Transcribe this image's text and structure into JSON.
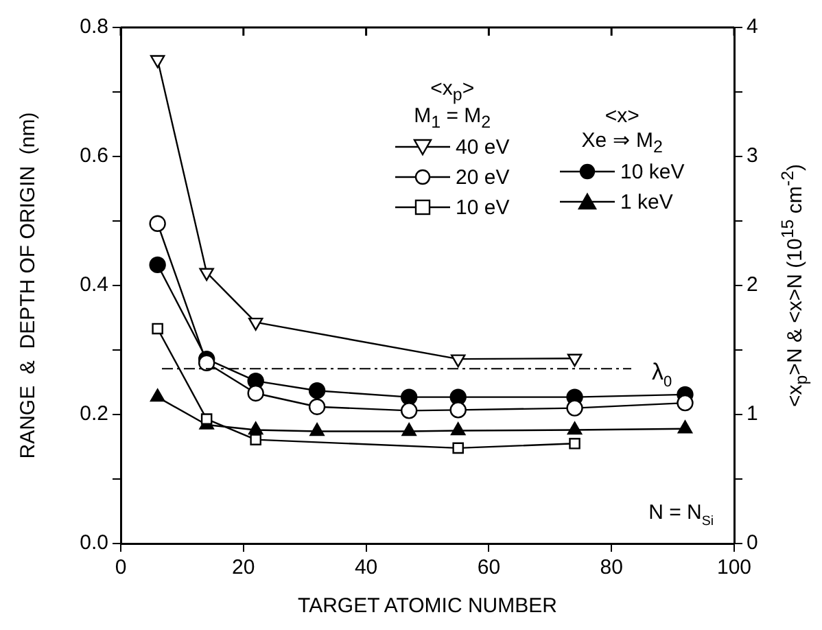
{
  "chart_data": {
    "type": "line",
    "xlabel": "TARGET ATOMIC NUMBER",
    "ylabel": "RANGE  &  DEPTH OF ORIGIN  (nm)",
    "y2label": "<x$_{p}$>N  &  <x>N  (10$^{15}$ cm$^{-2}$)",
    "xlim": [
      0,
      100
    ],
    "xticks": [
      0,
      20,
      40,
      60,
      80,
      100
    ],
    "ylim": [
      0,
      0.8
    ],
    "yticks": [
      {
        "value": 0,
        "label": "0.0"
      },
      {
        "value": 0.1,
        "label": null
      },
      0.2,
      {
        "value": 0.3,
        "label": null
      },
      0.4,
      {
        "value": 0.5,
        "label": null
      },
      0.6,
      {
        "value": 0.7,
        "label": null
      },
      0.8
    ],
    "y2lim": [
      0,
      4
    ],
    "y2ticks": [
      0,
      {
        "value": 0.5,
        "label": null
      },
      1,
      {
        "value": 1.5,
        "label": null
      },
      2,
      {
        "value": 2.5,
        "label": null
      },
      3,
      {
        "value": 3.5,
        "label": null
      },
      4
    ],
    "grid": false,
    "legend": "top right",
    "line_style": "solid",
    "series": [
      {
        "name": "40 eV",
        "color": "#000000",
        "marker": "triangle-down",
        "x": [
          6,
          14,
          22,
          55,
          74
        ],
        "values": [
          0.75,
          0.42,
          0.343,
          0.286,
          0.287
        ]
      },
      {
        "name": "20 eV",
        "color": "#000000",
        "marker": "circle",
        "x": [
          6,
          14,
          22,
          32,
          47,
          55,
          74,
          92
        ],
        "values": [
          0.496,
          0.28,
          0.233,
          0.212,
          0.206,
          0.207,
          0.21,
          0.218
        ]
      },
      {
        "name": "10 eV",
        "color": "#000000",
        "marker": "square",
        "x": [
          6,
          14,
          22,
          55,
          74
        ],
        "values": [
          0.333,
          0.193,
          0.161,
          0.148,
          0.155
        ]
      },
      {
        "name": "10 keV",
        "color": "#000000",
        "marker": "circle",
        "x": [
          6,
          14,
          22,
          32,
          47,
          55,
          74,
          92
        ],
        "values": [
          0.432,
          0.286,
          0.252,
          0.237,
          0.227,
          0.227,
          0.227,
          0.231
        ]
      },
      {
        "name": "1 keV",
        "color": "#000000",
        "marker": "triangle",
        "x": [
          6,
          14,
          22,
          32,
          47,
          55,
          74,
          92
        ],
        "values": [
          0.227,
          0.184,
          0.176,
          0.174,
          0.174,
          0.175,
          0.176,
          0.178
        ]
      }
    ],
    "ref_lines": [
      {
        "axis": "y",
        "value": 0.271,
        "label": "λ$_{0}$",
        "color": "#000000",
        "line_style": "dashed"
      }
    ],
    "annotations": [
      "<x$_{p}$>",
      "M$_{1}$ = M$_{2}$",
      "<x>",
      "Xe ⇒ M$_{2}$",
      "N = N$_{Si}$"
    ]
  }
}
